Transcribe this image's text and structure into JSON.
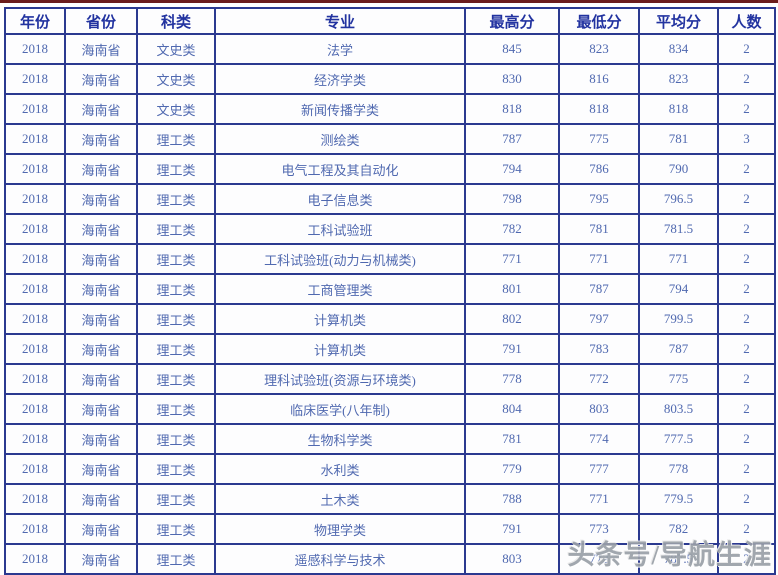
{
  "chart_data": {
    "type": "table",
    "columns": [
      "年份",
      "省份",
      "科类",
      "专业",
      "最高分",
      "最低分",
      "平均分",
      "人数"
    ],
    "rows": [
      [
        "2018",
        "海南省",
        "文史类",
        "法学",
        "845",
        "823",
        "834",
        "2"
      ],
      [
        "2018",
        "海南省",
        "文史类",
        "经济学类",
        "830",
        "816",
        "823",
        "2"
      ],
      [
        "2018",
        "海南省",
        "文史类",
        "新闻传播学类",
        "818",
        "818",
        "818",
        "2"
      ],
      [
        "2018",
        "海南省",
        "理工类",
        "测绘类",
        "787",
        "775",
        "781",
        "3"
      ],
      [
        "2018",
        "海南省",
        "理工类",
        "电气工程及其自动化",
        "794",
        "786",
        "790",
        "2"
      ],
      [
        "2018",
        "海南省",
        "理工类",
        "电子信息类",
        "798",
        "795",
        "796.5",
        "2"
      ],
      [
        "2018",
        "海南省",
        "理工类",
        "工科试验班",
        "782",
        "781",
        "781.5",
        "2"
      ],
      [
        "2018",
        "海南省",
        "理工类",
        "工科试验班(动力与机械类)",
        "771",
        "771",
        "771",
        "2"
      ],
      [
        "2018",
        "海南省",
        "理工类",
        "工商管理类",
        "801",
        "787",
        "794",
        "2"
      ],
      [
        "2018",
        "海南省",
        "理工类",
        "计算机类",
        "802",
        "797",
        "799.5",
        "2"
      ],
      [
        "2018",
        "海南省",
        "理工类",
        "计算机类",
        "791",
        "783",
        "787",
        "2"
      ],
      [
        "2018",
        "海南省",
        "理工类",
        "理科试验班(资源与环境类)",
        "778",
        "772",
        "775",
        "2"
      ],
      [
        "2018",
        "海南省",
        "理工类",
        "临床医学(八年制)",
        "804",
        "803",
        "803.5",
        "2"
      ],
      [
        "2018",
        "海南省",
        "理工类",
        "生物科学类",
        "781",
        "774",
        "777.5",
        "2"
      ],
      [
        "2018",
        "海南省",
        "理工类",
        "水利类",
        "779",
        "777",
        "778",
        "2"
      ],
      [
        "2018",
        "海南省",
        "理工类",
        "土木类",
        "788",
        "771",
        "779.5",
        "2"
      ],
      [
        "2018",
        "海南省",
        "理工类",
        "物理学类",
        "791",
        "773",
        "782",
        "2"
      ],
      [
        "2018",
        "海南省",
        "理工类",
        "遥感科学与技术",
        "803",
        "772",
        "787.5",
        "2"
      ]
    ],
    "title": "",
    "grid": "on",
    "notes": "admission score table, 18 data rows, bottom-right cells partially covered by watermark"
  },
  "watermark": {
    "text": "头条号/导航生涯"
  },
  "colors": {
    "top_line": "#6b1c1c",
    "border": "#2b3990",
    "header_text": "#2233a0",
    "cell_text": "#5069b0",
    "watermark": "#9aa0a8"
  }
}
